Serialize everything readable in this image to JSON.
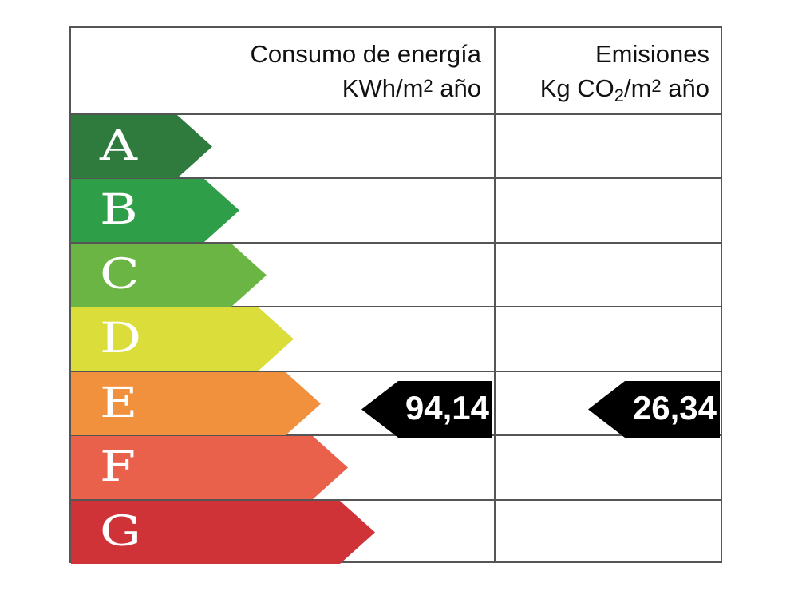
{
  "header": {
    "energy_title": "Consumo de energía",
    "energy_unit_pre": "KWh/m",
    "energy_unit_sup": "2",
    "energy_unit_post": " año",
    "emissions_title": "Emisiones",
    "emissions_unit_pre": "Kg CO",
    "emissions_unit_sub": "2",
    "emissions_unit_mid": "/m",
    "emissions_unit_sup": "2",
    "emissions_unit_post": " año"
  },
  "ratings": [
    {
      "letter": "A",
      "color": "#2e7b3d"
    },
    {
      "letter": "B",
      "color": "#2f9e48"
    },
    {
      "letter": "C",
      "color": "#6bb545"
    },
    {
      "letter": "D",
      "color": "#dbdd3a"
    },
    {
      "letter": "E",
      "color": "#f1913e"
    },
    {
      "letter": "F",
      "color": "#e9614b"
    },
    {
      "letter": "G",
      "color": "#cf3338"
    }
  ],
  "result": {
    "rating": "E",
    "energy_value": "94,14",
    "emissions_value": "26,34"
  }
}
